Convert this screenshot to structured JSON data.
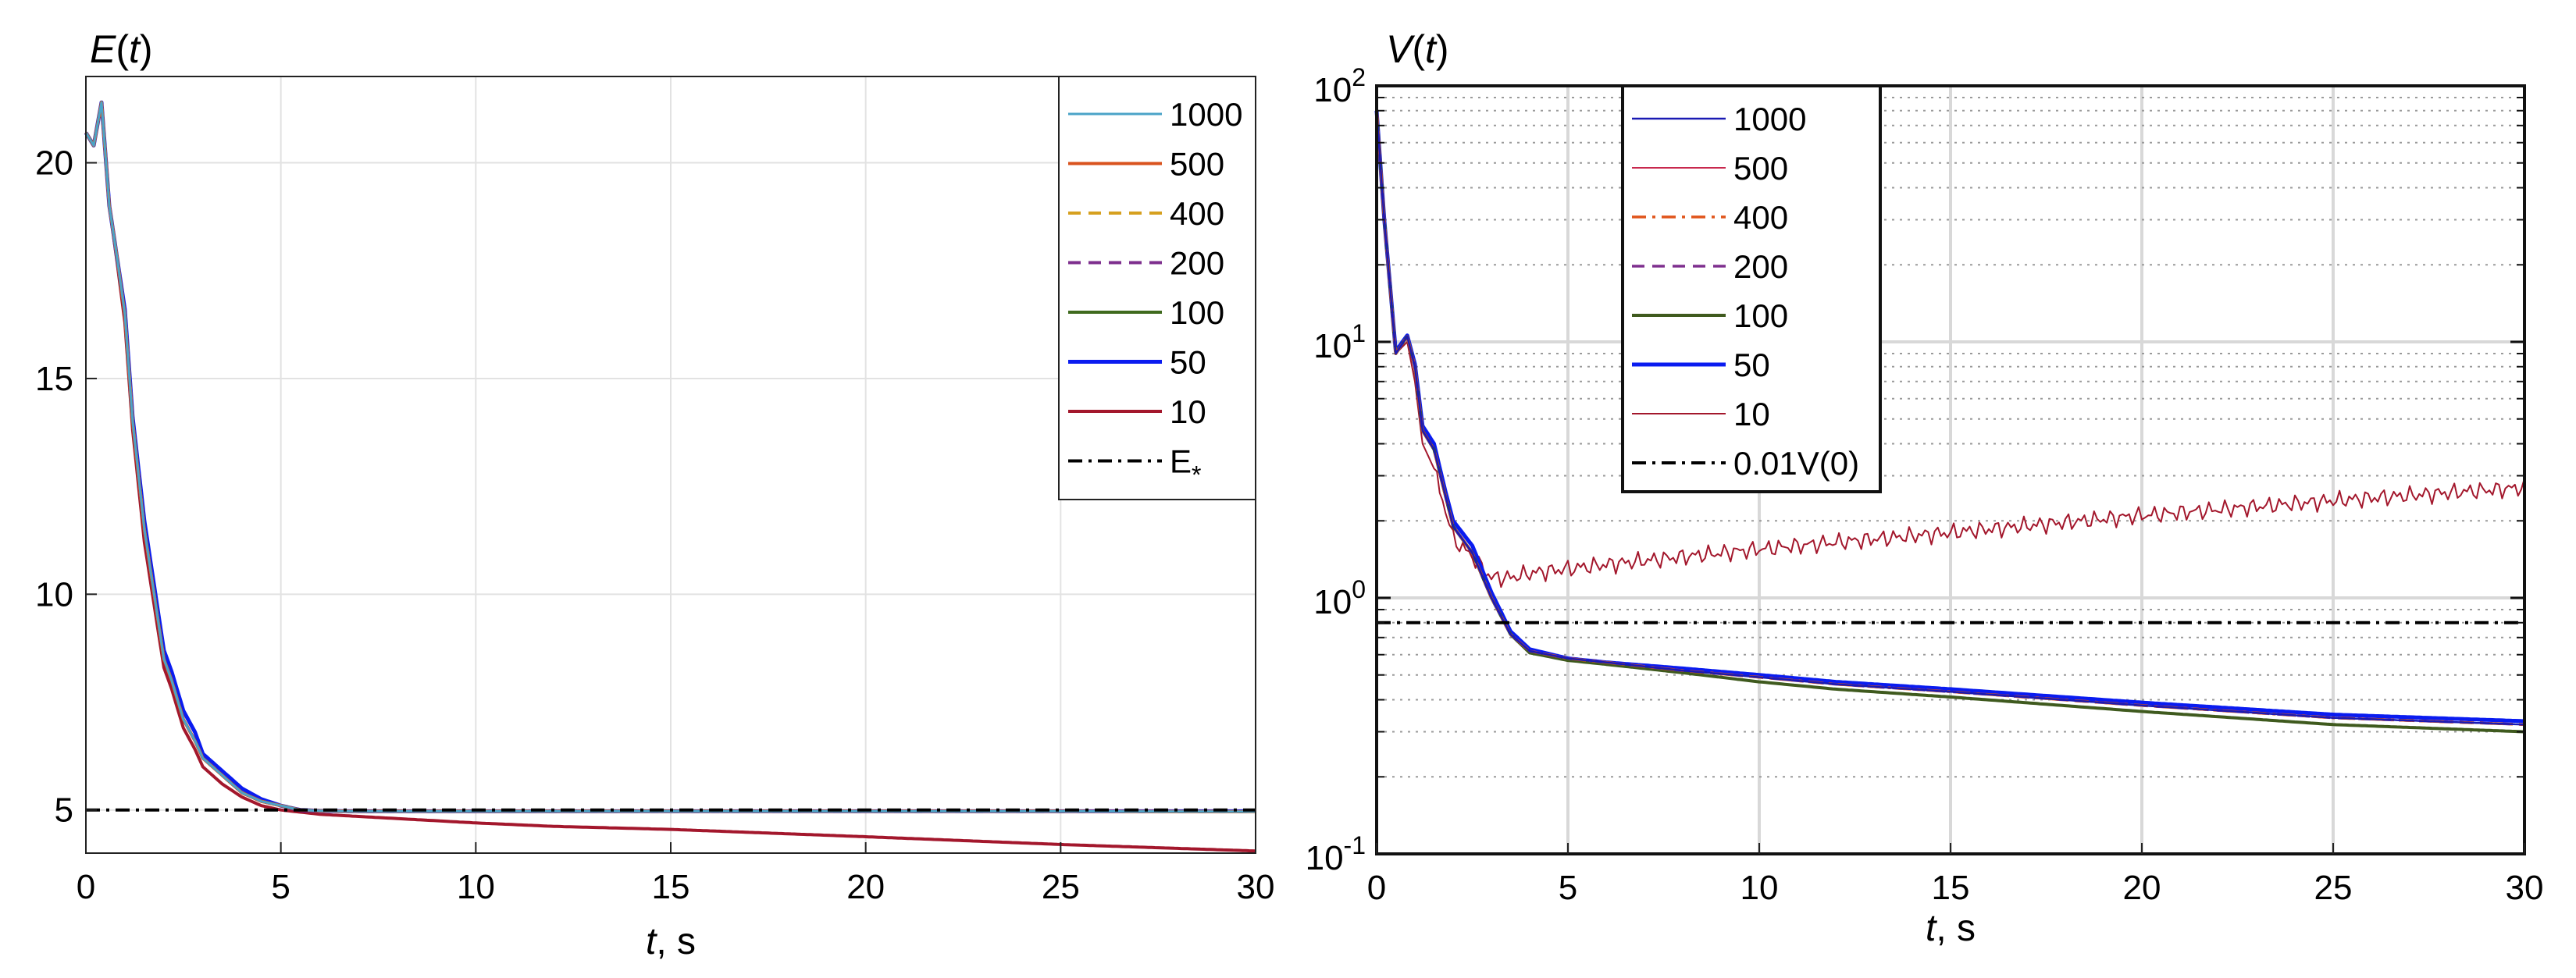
{
  "chart_data": [
    {
      "type": "line",
      "title": "E(t)",
      "title_parts": {
        "main": "E",
        "open": "(",
        "var": "t",
        "close": ")"
      },
      "xlabel": "t, s",
      "xlabel_parts": {
        "var": "t",
        "rest": ", s"
      },
      "ylabel": "",
      "xlim": [
        0,
        30
      ],
      "ylim": [
        4,
        22
      ],
      "yscale": "linear",
      "xticks": [
        0,
        5,
        10,
        15,
        20,
        25,
        30
      ],
      "yticks": [
        5,
        10,
        15,
        20
      ],
      "grid": true,
      "legend_position": "top-right",
      "series": [
        {
          "name": "1000",
          "color": "#4aa3c8",
          "dash": "solid",
          "width": 3,
          "x": [
            0,
            0.2,
            0.4,
            0.6,
            0.8,
            1.0,
            1.2,
            1.5,
            2.0,
            2.2,
            2.5,
            2.8,
            3.0,
            3.5,
            4.0,
            4.5,
            5.0,
            5.5,
            6,
            7,
            8,
            10,
            12,
            15,
            20,
            25,
            30
          ],
          "y": [
            20.7,
            20.4,
            21.4,
            19,
            17.8,
            16.5,
            14,
            11.5,
            8.5,
            8.0,
            7.1,
            6.6,
            6.2,
            5.8,
            5.4,
            5.2,
            5.1,
            5.0,
            4.98,
            4.97,
            4.97,
            4.97,
            4.97,
            4.97,
            4.97,
            4.97,
            4.96
          ]
        },
        {
          "name": "500",
          "color": "#d9531e",
          "dash": "solid",
          "width": 4,
          "x": [
            0,
            0.2,
            0.4,
            0.6,
            0.8,
            1.0,
            1.2,
            1.5,
            2.0,
            2.2,
            2.5,
            2.8,
            3.0,
            3.5,
            4.0,
            4.5,
            5.0,
            5.5,
            6,
            7,
            8,
            10,
            12,
            15,
            20,
            25,
            30
          ],
          "y": [
            20.7,
            20.4,
            21.4,
            19,
            17.8,
            16.5,
            14,
            11.5,
            8.5,
            8.0,
            7.1,
            6.6,
            6.2,
            5.8,
            5.4,
            5.2,
            5.1,
            5.0,
            4.98,
            4.97,
            4.97,
            4.97,
            4.97,
            4.97,
            4.97,
            4.97,
            4.96
          ]
        },
        {
          "name": "400",
          "color": "#d6a01f",
          "dash": "dashed",
          "width": 4,
          "x": [
            0,
            0.2,
            0.4,
            0.6,
            0.8,
            1.0,
            1.2,
            1.5,
            2.0,
            2.2,
            2.5,
            2.8,
            3.0,
            3.5,
            4.0,
            4.5,
            5.0,
            5.5,
            6,
            7,
            8,
            10,
            12,
            15,
            20,
            25,
            30
          ],
          "y": [
            20.7,
            20.4,
            21.4,
            19,
            17.8,
            16.5,
            14,
            11.5,
            8.5,
            8.0,
            7.1,
            6.6,
            6.2,
            5.8,
            5.4,
            5.2,
            5.1,
            5.0,
            4.98,
            4.97,
            4.97,
            4.97,
            4.97,
            4.97,
            4.97,
            4.97,
            4.96
          ]
        },
        {
          "name": "200",
          "color": "#7e2f8e",
          "dash": "dashed",
          "width": 4,
          "x": [
            0,
            0.2,
            0.4,
            0.6,
            0.8,
            1.0,
            1.2,
            1.5,
            2.0,
            2.2,
            2.5,
            2.8,
            3.0,
            3.5,
            4.0,
            4.5,
            5.0,
            5.5,
            6,
            7,
            8,
            10,
            12,
            15,
            20,
            25,
            30
          ],
          "y": [
            20.7,
            20.4,
            21.4,
            19,
            17.8,
            16.5,
            14,
            11.5,
            8.5,
            8.0,
            7.1,
            6.6,
            6.2,
            5.8,
            5.4,
            5.2,
            5.1,
            5.0,
            4.98,
            4.97,
            4.97,
            4.97,
            4.97,
            4.97,
            4.97,
            4.97,
            4.96
          ]
        },
        {
          "name": "100",
          "color": "#3f6a1e",
          "dash": "solid",
          "width": 4,
          "x": [
            0,
            0.2,
            0.4,
            0.6,
            0.8,
            1.0,
            1.2,
            1.5,
            2.0,
            2.2,
            2.5,
            2.8,
            3.0,
            3.5,
            4.0,
            4.5,
            5.0,
            5.5,
            6,
            7,
            8,
            10,
            12,
            15,
            20,
            25,
            30
          ],
          "y": [
            20.7,
            20.4,
            21.4,
            19,
            17.8,
            16.5,
            14,
            11.5,
            8.5,
            8.0,
            7.1,
            6.6,
            6.2,
            5.8,
            5.4,
            5.2,
            5.1,
            5.0,
            4.98,
            4.97,
            4.97,
            4.97,
            4.97,
            4.97,
            4.97,
            4.97,
            4.96
          ]
        },
        {
          "name": "50",
          "color": "#0a1cf0",
          "dash": "solid",
          "width": 5,
          "x": [
            0,
            0.2,
            0.4,
            0.6,
            0.8,
            1.0,
            1.2,
            1.5,
            2.0,
            2.2,
            2.5,
            2.8,
            3.0,
            3.5,
            4.0,
            4.5,
            5.0,
            5.5,
            6,
            7,
            8,
            10,
            12,
            15,
            20,
            25,
            30
          ],
          "y": [
            20.7,
            20.4,
            21.4,
            19,
            17.8,
            16.6,
            14.1,
            11.7,
            8.7,
            8.2,
            7.3,
            6.8,
            6.3,
            5.9,
            5.5,
            5.25,
            5.1,
            5.0,
            4.98,
            4.97,
            4.97,
            4.97,
            4.97,
            4.97,
            4.97,
            4.97,
            4.97
          ]
        },
        {
          "name": "10",
          "color": "#a3172c",
          "dash": "solid",
          "width": 4,
          "x": [
            0,
            0.2,
            0.4,
            0.6,
            0.8,
            1.0,
            1.2,
            1.5,
            2.0,
            2.2,
            2.5,
            2.8,
            3.0,
            3.5,
            4.0,
            4.5,
            5.0,
            5.5,
            6,
            7,
            8,
            10,
            12,
            15,
            20,
            25,
            30
          ],
          "y": [
            20.7,
            20.4,
            21.4,
            19,
            17.7,
            16.3,
            13.8,
            11.2,
            8.3,
            7.8,
            6.9,
            6.4,
            6.0,
            5.6,
            5.3,
            5.1,
            5.0,
            4.95,
            4.9,
            4.85,
            4.8,
            4.7,
            4.62,
            4.55,
            4.38,
            4.2,
            4.05
          ]
        },
        {
          "name": "E*",
          "color": "#000000",
          "dash": "dashdot",
          "width": 4,
          "x": [
            0,
            30
          ],
          "y": [
            5.0,
            5.0
          ]
        }
      ],
      "legend_entries": [
        "1000",
        "500",
        "400",
        "200",
        "100",
        "50",
        "10",
        "E*"
      ],
      "legend_last": {
        "main": "E",
        "sub": "*"
      }
    },
    {
      "type": "line",
      "title": "V(t)",
      "title_parts": {
        "main": "V",
        "open": "(",
        "var": "t",
        "close": ")"
      },
      "xlabel": "t, s",
      "xlabel_parts": {
        "var": "t",
        "rest": ", s"
      },
      "ylabel": "",
      "xlim": [
        0,
        30
      ],
      "ylim": [
        0.1,
        100
      ],
      "yscale": "log",
      "xticks": [
        0,
        5,
        10,
        15,
        20,
        25,
        30
      ],
      "ytick_labels": [
        {
          "value": 100,
          "base": "10",
          "exp": "2"
        },
        {
          "value": 10,
          "base": "10",
          "exp": "1"
        },
        {
          "value": 1,
          "base": "10",
          "exp": "0"
        },
        {
          "value": 0.1,
          "base": "10",
          "exp": "-1"
        }
      ],
      "grid": true,
      "legend_position": "top-left",
      "series": [
        {
          "name": "1000",
          "color": "#1a1ab3",
          "dash": "solid",
          "width": 2.5,
          "x": [
            0,
            0.2,
            0.5,
            0.8,
            1.0,
            1.2,
            1.5,
            1.8,
            2.0,
            2.5,
            3.0,
            3.5,
            4.0,
            5,
            6,
            8,
            10,
            12,
            15,
            20,
            25,
            30
          ],
          "y": [
            80,
            30,
            9,
            10.5,
            8,
            4.5,
            3.8,
            2.5,
            1.9,
            1.5,
            1.0,
            0.72,
            0.62,
            0.58,
            0.56,
            0.52,
            0.49,
            0.46,
            0.43,
            0.38,
            0.34,
            0.32
          ]
        },
        {
          "name": "500",
          "color": "#c8284e",
          "dash": "solid",
          "width": 2,
          "x": [
            0,
            0.2,
            0.5,
            0.8,
            1.0,
            1.2,
            1.5,
            1.8,
            2.0,
            2.5,
            3.0,
            3.5,
            4.0,
            5,
            6,
            8,
            10,
            12,
            15,
            20,
            25,
            30
          ],
          "y": [
            80,
            30,
            9,
            10.5,
            8,
            4.5,
            3.8,
            2.5,
            1.9,
            1.5,
            1.0,
            0.72,
            0.62,
            0.58,
            0.56,
            0.52,
            0.49,
            0.46,
            0.43,
            0.38,
            0.34,
            0.32
          ]
        },
        {
          "name": "400",
          "color": "#e0541a",
          "dash": "dashdot",
          "width": 3.5,
          "x": [
            0,
            0.2,
            0.5,
            0.8,
            1.0,
            1.2,
            1.5,
            1.8,
            2.0,
            2.5,
            3.0,
            3.5,
            4.0,
            5,
            6,
            8,
            10,
            12,
            15,
            20,
            25,
            30
          ],
          "y": [
            80,
            30,
            9,
            10.5,
            8,
            4.5,
            3.8,
            2.5,
            1.9,
            1.5,
            1.0,
            0.72,
            0.62,
            0.58,
            0.56,
            0.52,
            0.49,
            0.46,
            0.43,
            0.38,
            0.34,
            0.32
          ]
        },
        {
          "name": "200",
          "color": "#7e2f8e",
          "dash": "dashed",
          "width": 3.5,
          "x": [
            0,
            0.2,
            0.5,
            0.8,
            1.0,
            1.2,
            1.5,
            1.8,
            2.0,
            2.5,
            3.0,
            3.5,
            4.0,
            5,
            6,
            8,
            10,
            12,
            15,
            20,
            25,
            30
          ],
          "y": [
            80,
            30,
            9,
            10.5,
            8,
            4.5,
            3.8,
            2.5,
            1.9,
            1.5,
            1.0,
            0.72,
            0.62,
            0.58,
            0.56,
            0.52,
            0.49,
            0.46,
            0.43,
            0.38,
            0.34,
            0.32
          ]
        },
        {
          "name": "100",
          "color": "#3f5a1e",
          "dash": "solid",
          "width": 4,
          "x": [
            0,
            0.2,
            0.5,
            0.8,
            1.0,
            1.2,
            1.5,
            1.8,
            2.0,
            2.5,
            3.0,
            3.5,
            4.0,
            5,
            6,
            8,
            10,
            12,
            15,
            20,
            25,
            30
          ],
          "y": [
            80,
            30,
            9,
            10.5,
            8,
            4.5,
            3.8,
            2.5,
            1.9,
            1.5,
            1.0,
            0.72,
            0.61,
            0.57,
            0.55,
            0.51,
            0.47,
            0.44,
            0.41,
            0.36,
            0.32,
            0.3
          ]
        },
        {
          "name": "50",
          "color": "#0a1cf0",
          "dash": "solid",
          "width": 5,
          "x": [
            0,
            0.2,
            0.5,
            0.8,
            1.0,
            1.2,
            1.5,
            1.8,
            2.0,
            2.5,
            3.0,
            3.5,
            4.0,
            5,
            6,
            8,
            10,
            12,
            15,
            20,
            25,
            30
          ],
          "y": [
            80,
            30,
            9.2,
            10.6,
            8.2,
            4.7,
            4.0,
            2.6,
            2.0,
            1.6,
            1.05,
            0.74,
            0.63,
            0.58,
            0.56,
            0.53,
            0.5,
            0.47,
            0.44,
            0.39,
            0.35,
            0.33
          ]
        },
        {
          "name": "10",
          "color": "#a3172c",
          "dash": "solid",
          "width": 2,
          "x": [
            0,
            0.2,
            0.5,
            0.8,
            1.0,
            1.2,
            1.5,
            1.8,
            2.0,
            2.5,
            3.0,
            3.5,
            4.0,
            5,
            6,
            8,
            10,
            12,
            15,
            20,
            25,
            30
          ],
          "y": [
            80,
            30,
            9,
            10,
            7,
            4,
            3.2,
            2.2,
            1.7,
            1.45,
            1.2,
            1.2,
            1.25,
            1.3,
            1.35,
            1.45,
            1.55,
            1.65,
            1.8,
            2.1,
            2.4,
            2.7
          ]
        },
        {
          "name": "0.01V(0)",
          "color": "#000000",
          "dash": "dashdot",
          "width": 4,
          "x": [
            0,
            30
          ],
          "y": [
            0.8,
            0.8
          ]
        }
      ],
      "legend_entries": [
        "1000",
        "500",
        "400",
        "200",
        "100",
        "50",
        "10",
        "0.01V(0)"
      ]
    }
  ]
}
